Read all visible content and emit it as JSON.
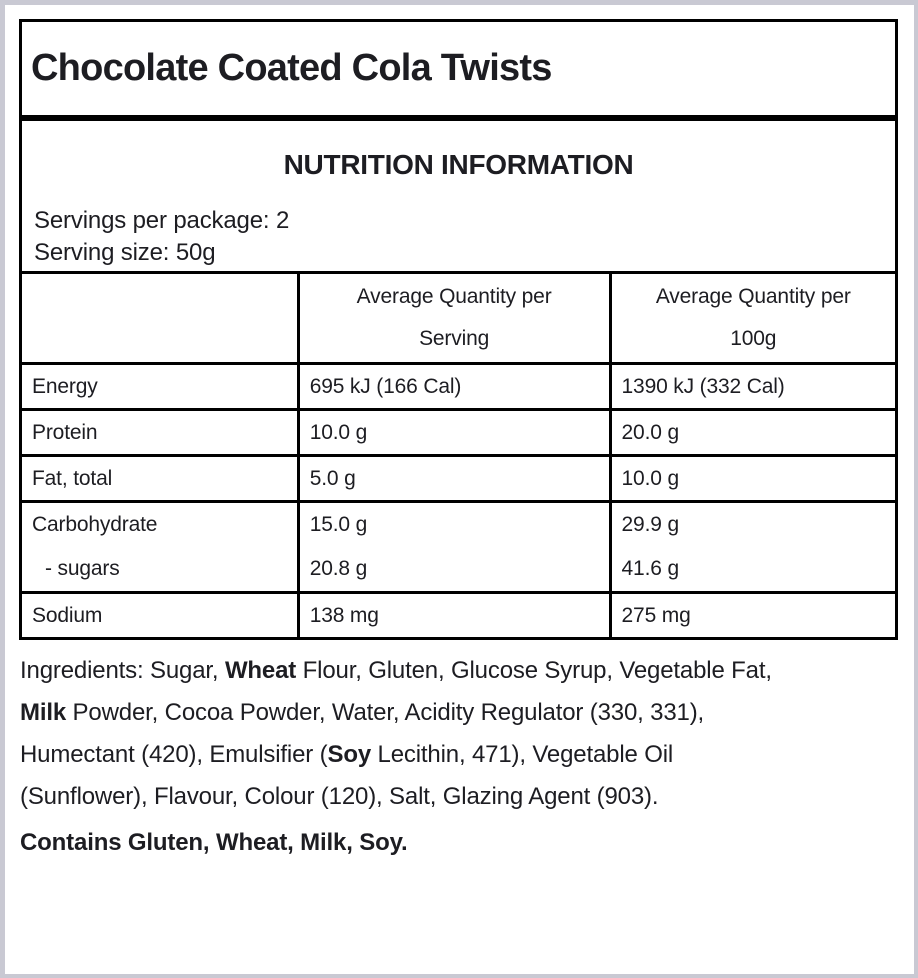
{
  "page": {
    "frame_color": "#c9c9d3",
    "background_color": "#ffffff",
    "border_color": "#000000"
  },
  "product": {
    "title": "Chocolate Coated Cola Twists"
  },
  "panel": {
    "title": "NUTRITION INFORMATION",
    "servings_per_package": "Servings per package: 2",
    "serving_size": "Serving size: 50g",
    "columns": {
      "nutrient": "",
      "per_serving": "Average Quantity per\nServing",
      "per_100g": "Average Quantity per\n100g"
    },
    "rows": [
      {
        "nutrient": "Energy",
        "per_serving": "695 kJ (166 Cal)",
        "per_100g": "1390 kJ (332 Cal)"
      },
      {
        "nutrient": "Protein",
        "per_serving": "10.0 g",
        "per_100g": "20.0 g"
      },
      {
        "nutrient": "Fat, total",
        "per_serving": "5.0 g",
        "per_100g": "10.0 g"
      },
      {
        "nutrient": "Carbohydrate",
        "per_serving": "15.0 g",
        "per_100g": "29.9 g"
      },
      {
        "nutrient": "- sugars",
        "per_serving": "20.8 g",
        "per_100g": "41.6 g"
      },
      {
        "nutrient": "Sodium",
        "per_serving": "138 mg",
        "per_100g": "275 mg"
      }
    ]
  },
  "ingredients": {
    "segments": [
      {
        "text": "Ingredients: Sugar, ",
        "bold": false
      },
      {
        "text": "Wheat",
        "bold": true
      },
      {
        "text": " Flour, Gluten, Glucose Syrup, Vegetable Fat,\n",
        "bold": false
      },
      {
        "text": "Milk",
        "bold": true
      },
      {
        "text": " Powder, Cocoa Powder, Water, Acidity Regulator (330, 331),\nHumectant (420), Emulsifier (",
        "bold": false
      },
      {
        "text": "Soy",
        "bold": true
      },
      {
        "text": " Lecithin, 471), Vegetable Oil\n(Sunflower), Flavour, Colour (120), Salt, Glazing Agent (903).",
        "bold": false
      }
    ],
    "contains": "Contains Gluten, Wheat, Milk, Soy."
  }
}
